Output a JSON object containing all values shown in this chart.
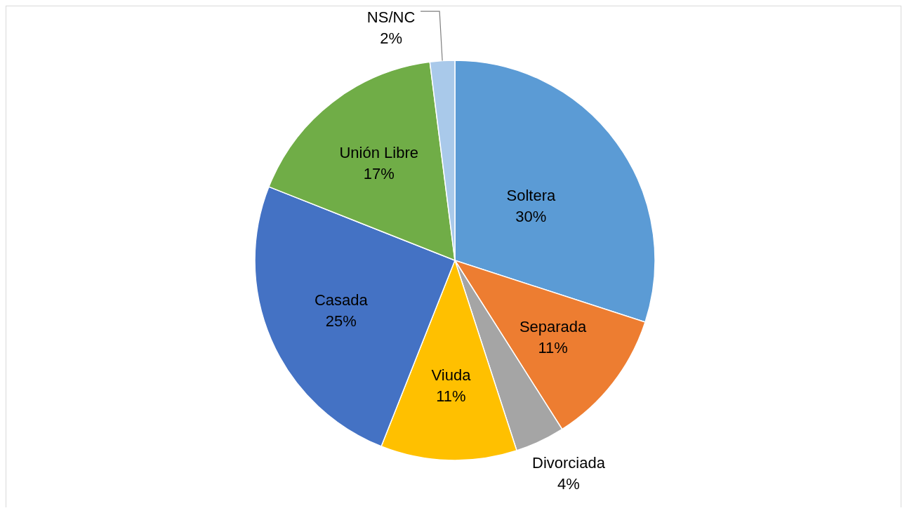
{
  "chart_data": {
    "type": "pie",
    "categories": [
      "Soltera",
      "Separada",
      "Divorciada",
      "Viuda",
      "Casada",
      "Unión Libre",
      "NS/NC"
    ],
    "values": [
      30,
      11,
      4,
      11,
      25,
      17,
      2
    ],
    "colors": [
      "#5b9bd5",
      "#ed7d31",
      "#a5a5a5",
      "#ffc000",
      "#4472c4",
      "#70ad47",
      "#a9c9ea"
    ],
    "value_labels": [
      "30%",
      "11%",
      "4%",
      "11%",
      "25%",
      "17%",
      "2%"
    ]
  }
}
